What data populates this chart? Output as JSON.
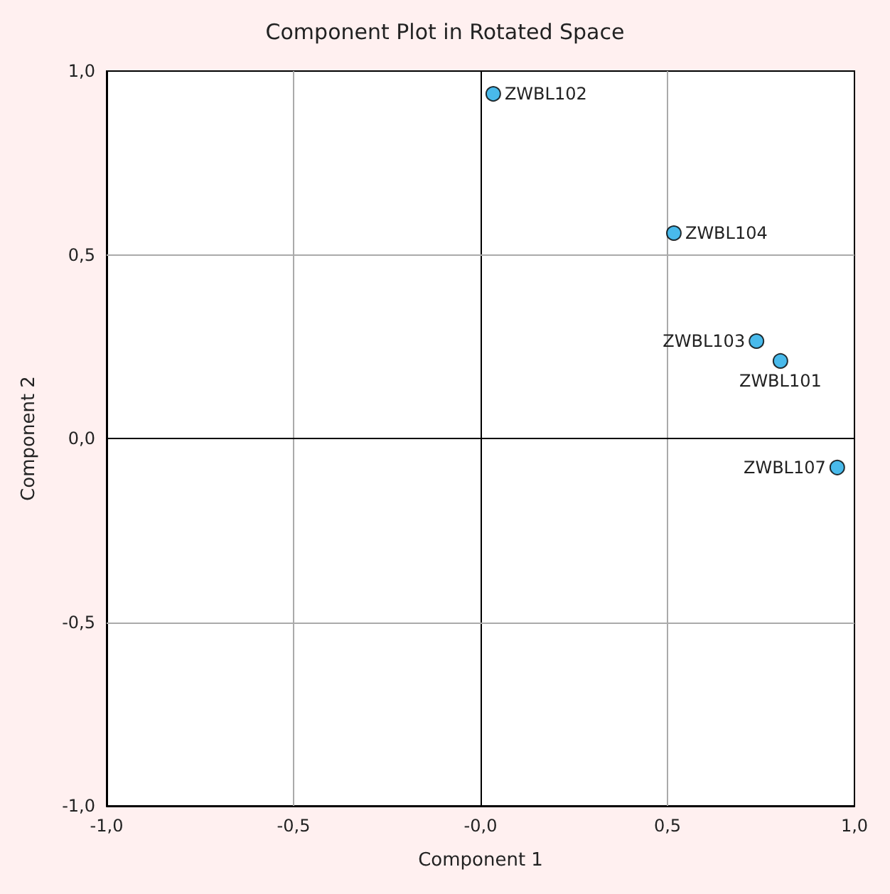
{
  "chart_data": {
    "type": "scatter",
    "title": "Component Plot in Rotated Space",
    "xlabel": "Component 1",
    "ylabel": "Component 2",
    "x": [
      0.034,
      0.517,
      0.738,
      0.802,
      0.954
    ],
    "series": [
      {
        "color": "#1ca9e6",
        "values": [
          0.938,
          0.559,
          0.265,
          0.211,
          -0.079
        ]
      }
    ],
    "annotations": [
      {
        "text": "ZWBL102",
        "x": 0.034,
        "y": 0.938
      },
      {
        "text": "ZWBL104",
        "x": 0.517,
        "y": 0.559
      },
      {
        "text": "ZWBL103",
        "x": 0.738,
        "y": 0.265
      },
      {
        "text": "ZWBL101",
        "x": 0.802,
        "y": 0.211
      },
      {
        "text": "ZWBL107",
        "x": 0.954,
        "y": -0.079
      }
    ],
    "xlim": [
      -1,
      1
    ],
    "ylim": [
      -1,
      1
    ],
    "xticks": [
      {
        "value": -1,
        "label": "-1,0"
      },
      {
        "value": -0.5,
        "label": "-0,5"
      },
      {
        "value": 0,
        "label": "-0,0"
      },
      {
        "value": 0.5,
        "label": "0,5"
      },
      {
        "value": 1,
        "label": "1,0"
      }
    ],
    "yticks": [
      {
        "value": -1,
        "label": "-1,0"
      },
      {
        "value": -0.5,
        "label": "-0,5"
      },
      {
        "value": 0,
        "label": "0,0"
      },
      {
        "value": 0.5,
        "label": "0,5"
      },
      {
        "value": 1,
        "label": "1,0"
      }
    ],
    "grid": true,
    "marker": "circle"
  }
}
